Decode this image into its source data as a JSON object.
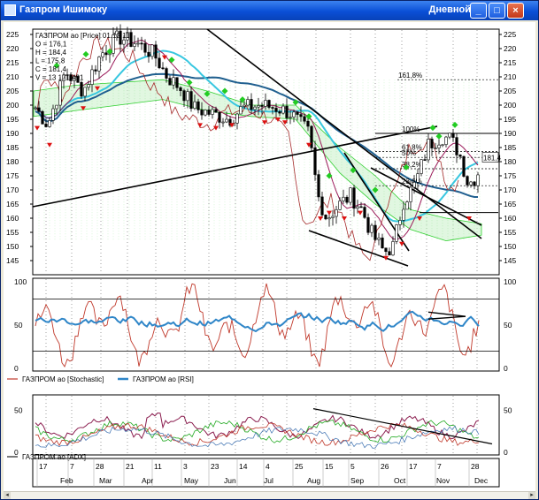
{
  "window": {
    "title": "Газпром Ишимоку",
    "period": "Дневной",
    "minimize": "_",
    "maximize": "□",
    "close": "×"
  },
  "price_panel": {
    "legend_lines": [
      "ГАЗПРОМ ао [Price] 01.12.11",
      "O = 176,1",
      "H = 184,4",
      "L = 175,8",
      "C = 181,4",
      "V = 13 171 491"
    ],
    "axis_ticks": [
      "225",
      "220",
      "215",
      "210",
      "205",
      "200",
      "195",
      "190",
      "185",
      "180",
      "175",
      "170",
      "165",
      "160",
      "155",
      "150",
      "145"
    ],
    "last_price": "181,4",
    "fib_labels": [
      "161,8%",
      "100%",
      "61,8%",
      "50%",
      "38,2%",
      "23,6%"
    ]
  },
  "oscillator_panel": {
    "axis_ticks": [
      "100",
      "50",
      "0"
    ],
    "legend": [
      {
        "label": "ГАЗПРОМ ао [Stochastic]",
        "color": "#c0392b"
      },
      {
        "label": "ГАЗПРОМ ао [RSI]",
        "color": "#2f86c8"
      }
    ]
  },
  "adx_panel": {
    "axis_ticks": [
      "50",
      "0"
    ],
    "legend": [
      {
        "label": "ГАЗПРОМ ао [ADX]",
        "color": "#222222"
      }
    ]
  },
  "time_axis": {
    "day_labels": [
      "17",
      "7",
      "28",
      "21",
      "11",
      "3",
      "23",
      "14",
      "4",
      "25",
      "15",
      "5",
      "26",
      "17",
      "7",
      "28"
    ],
    "month_labels": [
      "Feb",
      "Mar",
      "Apr",
      "May",
      "Jun",
      "Jul",
      "Aug",
      "Sep",
      "Oct",
      "Nov",
      "Dec"
    ]
  },
  "colors": {
    "title_blue": "#0a4fd6",
    "candle_up": "#ffffff",
    "candle_down": "#000000",
    "kumo_green": "#2fd02f",
    "rsi_blue": "#2f86c8",
    "stoch_red": "#c0392b",
    "up_marker": "#22cc22",
    "down_marker": "#dd1111"
  }
}
